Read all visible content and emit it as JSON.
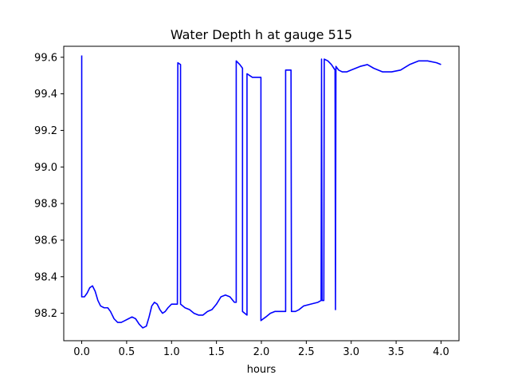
{
  "chart_data": {
    "type": "line",
    "title": "Water Depth h at gauge 515",
    "xlabel": "hours",
    "ylabel": "",
    "xlim": [
      -0.2,
      4.2
    ],
    "ylim": [
      98.05,
      99.66
    ],
    "grid": false,
    "legend": "none",
    "xticks": [
      0.0,
      0.5,
      1.0,
      1.5,
      2.0,
      2.5,
      3.0,
      3.5,
      4.0
    ],
    "xtick_labels": [
      "0.0",
      "0.5",
      "1.0",
      "1.5",
      "2.0",
      "2.5",
      "3.0",
      "3.5",
      "4.0"
    ],
    "yticks": [
      98.2,
      98.4,
      98.6,
      98.8,
      99.0,
      99.2,
      99.4,
      99.6
    ],
    "ytick_labels": [
      "98.2",
      "98.4",
      "98.6",
      "98.8",
      "99.0",
      "99.2",
      "99.4",
      "99.6"
    ],
    "series": [
      {
        "color": "#0000ff",
        "points": [
          [
            0.0,
            99.61
          ],
          [
            0.0,
            98.29
          ],
          [
            0.03,
            98.29
          ],
          [
            0.06,
            98.31
          ],
          [
            0.09,
            98.34
          ],
          [
            0.12,
            98.35
          ],
          [
            0.15,
            98.32
          ],
          [
            0.18,
            98.27
          ],
          [
            0.21,
            98.24
          ],
          [
            0.25,
            98.23
          ],
          [
            0.29,
            98.23
          ],
          [
            0.32,
            98.21
          ],
          [
            0.36,
            98.17
          ],
          [
            0.4,
            98.15
          ],
          [
            0.44,
            98.15
          ],
          [
            0.48,
            98.16
          ],
          [
            0.52,
            98.17
          ],
          [
            0.56,
            98.18
          ],
          [
            0.6,
            98.17
          ],
          [
            0.64,
            98.14
          ],
          [
            0.68,
            98.12
          ],
          [
            0.72,
            98.13
          ],
          [
            0.75,
            98.18
          ],
          [
            0.78,
            98.24
          ],
          [
            0.81,
            98.26
          ],
          [
            0.84,
            98.25
          ],
          [
            0.87,
            98.22
          ],
          [
            0.9,
            98.2
          ],
          [
            0.93,
            98.21
          ],
          [
            0.96,
            98.23
          ],
          [
            1.0,
            98.25
          ],
          [
            1.04,
            98.25
          ],
          [
            1.065,
            98.25
          ],
          [
            1.07,
            99.57
          ],
          [
            1.1,
            99.56
          ],
          [
            1.1,
            98.25
          ],
          [
            1.15,
            98.23
          ],
          [
            1.2,
            98.22
          ],
          [
            1.25,
            98.2
          ],
          [
            1.3,
            98.19
          ],
          [
            1.35,
            98.19
          ],
          [
            1.4,
            98.21
          ],
          [
            1.45,
            98.22
          ],
          [
            1.5,
            98.25
          ],
          [
            1.55,
            98.29
          ],
          [
            1.6,
            98.3
          ],
          [
            1.65,
            98.29
          ],
          [
            1.7,
            98.26
          ],
          [
            1.72,
            98.26
          ],
          [
            1.72,
            99.58
          ],
          [
            1.76,
            99.56
          ],
          [
            1.79,
            99.54
          ],
          [
            1.79,
            98.21
          ],
          [
            1.84,
            98.19
          ],
          [
            1.84,
            99.51
          ],
          [
            1.87,
            99.5
          ],
          [
            1.9,
            99.49
          ],
          [
            1.95,
            99.49
          ],
          [
            1.995,
            99.49
          ],
          [
            1.995,
            98.16
          ],
          [
            2.05,
            98.18
          ],
          [
            2.1,
            98.2
          ],
          [
            2.15,
            98.21
          ],
          [
            2.2,
            98.21
          ],
          [
            2.27,
            98.21
          ],
          [
            2.27,
            99.53
          ],
          [
            2.33,
            99.53
          ],
          [
            2.335,
            98.21
          ],
          [
            2.38,
            98.21
          ],
          [
            2.42,
            98.22
          ],
          [
            2.47,
            98.24
          ],
          [
            2.55,
            98.25
          ],
          [
            2.63,
            98.26
          ],
          [
            2.665,
            98.27
          ],
          [
            2.67,
            99.59
          ],
          [
            2.675,
            98.27
          ],
          [
            2.695,
            98.27
          ],
          [
            2.7,
            99.59
          ],
          [
            2.74,
            99.58
          ],
          [
            2.78,
            99.56
          ],
          [
            2.82,
            99.53
          ],
          [
            2.825,
            98.22
          ],
          [
            2.83,
            99.55
          ],
          [
            2.86,
            99.53
          ],
          [
            2.9,
            99.52
          ],
          [
            2.95,
            99.52
          ],
          [
            3.0,
            99.53
          ],
          [
            3.1,
            99.55
          ],
          [
            3.18,
            99.56
          ],
          [
            3.25,
            99.54
          ],
          [
            3.35,
            99.52
          ],
          [
            3.45,
            99.52
          ],
          [
            3.55,
            99.53
          ],
          [
            3.65,
            99.56
          ],
          [
            3.75,
            99.58
          ],
          [
            3.85,
            99.58
          ],
          [
            3.95,
            99.57
          ],
          [
            4.0,
            99.56
          ]
        ]
      }
    ]
  }
}
